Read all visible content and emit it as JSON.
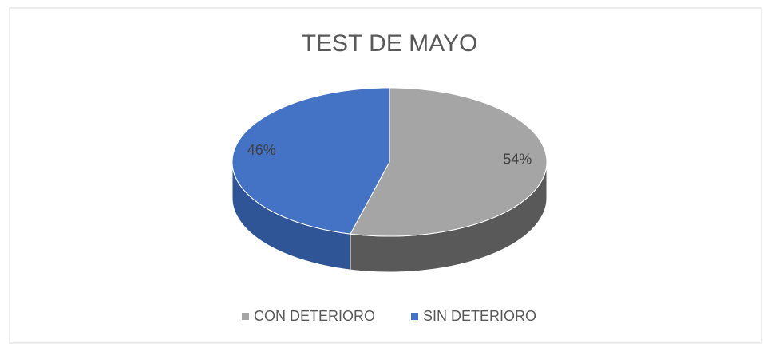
{
  "chart_data": {
    "type": "pie",
    "title": "TEST DE MAYO",
    "categories": [
      "CON DETERIORO",
      "SIN DETERIORO"
    ],
    "values": [
      54,
      46
    ],
    "value_labels": [
      "54%",
      "46%"
    ],
    "colors": [
      "#a5a5a5",
      "#4472c4"
    ],
    "side_colors": [
      "#595959",
      "#2f5597"
    ],
    "legend": "bottom"
  }
}
